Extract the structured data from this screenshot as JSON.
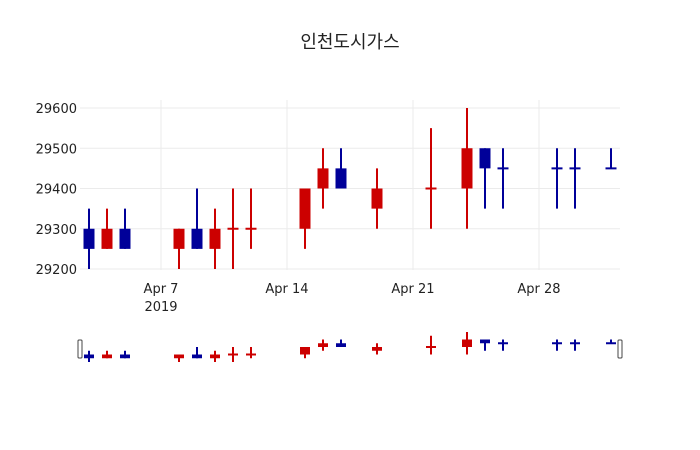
{
  "chart_data": {
    "type": "candlestick",
    "title": "인천도시가스",
    "xlabel": "",
    "ylabel": "",
    "ylim": [
      29185,
      29600
    ],
    "y_ticks": [
      29200,
      29300,
      29400,
      29500,
      29600
    ],
    "x_ticks": [
      {
        "date": "2019-04-07",
        "label": "Apr 7",
        "sublabel": "2019"
      },
      {
        "date": "2019-04-14",
        "label": "Apr 14"
      },
      {
        "date": "2019-04-21",
        "label": "Apr 21"
      },
      {
        "date": "2019-04-28",
        "label": "Apr 28"
      }
    ],
    "x_range": [
      "2019-04-02",
      "2019-05-03"
    ],
    "grid": true,
    "increasing_color": "#cc0000",
    "decreasing_color": "#000099",
    "rangeslider": true,
    "candles": [
      {
        "date": "2019-04-03",
        "open": 29300,
        "high": 29350,
        "low": 29200,
        "close": 29250
      },
      {
        "date": "2019-04-04",
        "open": 29250,
        "high": 29350,
        "low": 29250,
        "close": 29300
      },
      {
        "date": "2019-04-05",
        "open": 29300,
        "high": 29350,
        "low": 29250,
        "close": 29250
      },
      {
        "date": "2019-04-08",
        "open": 29250,
        "high": 29300,
        "low": 29200,
        "close": 29300
      },
      {
        "date": "2019-04-09",
        "open": 29300,
        "high": 29400,
        "low": 29250,
        "close": 29250
      },
      {
        "date": "2019-04-10",
        "open": 29250,
        "high": 29350,
        "low": 29200,
        "close": 29300
      },
      {
        "date": "2019-04-11",
        "open": 29300,
        "high": 29400,
        "low": 29200,
        "close": 29300
      },
      {
        "date": "2019-04-12",
        "open": 29300,
        "high": 29400,
        "low": 29250,
        "close": 29300
      },
      {
        "date": "2019-04-15",
        "open": 29300,
        "high": 29400,
        "low": 29250,
        "close": 29400
      },
      {
        "date": "2019-04-16",
        "open": 29400,
        "high": 29500,
        "low": 29350,
        "close": 29450
      },
      {
        "date": "2019-04-17",
        "open": 29450,
        "high": 29500,
        "low": 29400,
        "close": 29400
      },
      {
        "date": "2019-04-19",
        "open": 29350,
        "high": 29450,
        "low": 29300,
        "close": 29400
      },
      {
        "date": "2019-04-22",
        "open": 29400,
        "high": 29550,
        "low": 29300,
        "close": 29400
      },
      {
        "date": "2019-04-24",
        "open": 29400,
        "high": 29600,
        "low": 29300,
        "close": 29500
      },
      {
        "date": "2019-04-25",
        "open": 29500,
        "high": 29500,
        "low": 29350,
        "close": 29450
      },
      {
        "date": "2019-04-26",
        "open": 29450,
        "high": 29500,
        "low": 29350,
        "close": 29450
      },
      {
        "date": "2019-04-29",
        "open": 29450,
        "high": 29500,
        "low": 29350,
        "close": 29450
      },
      {
        "date": "2019-04-30",
        "open": 29450,
        "high": 29500,
        "low": 29350,
        "close": 29450
      },
      {
        "date": "2019-05-02",
        "open": 29450,
        "high": 29500,
        "low": 29450,
        "close": 29450
      }
    ]
  }
}
